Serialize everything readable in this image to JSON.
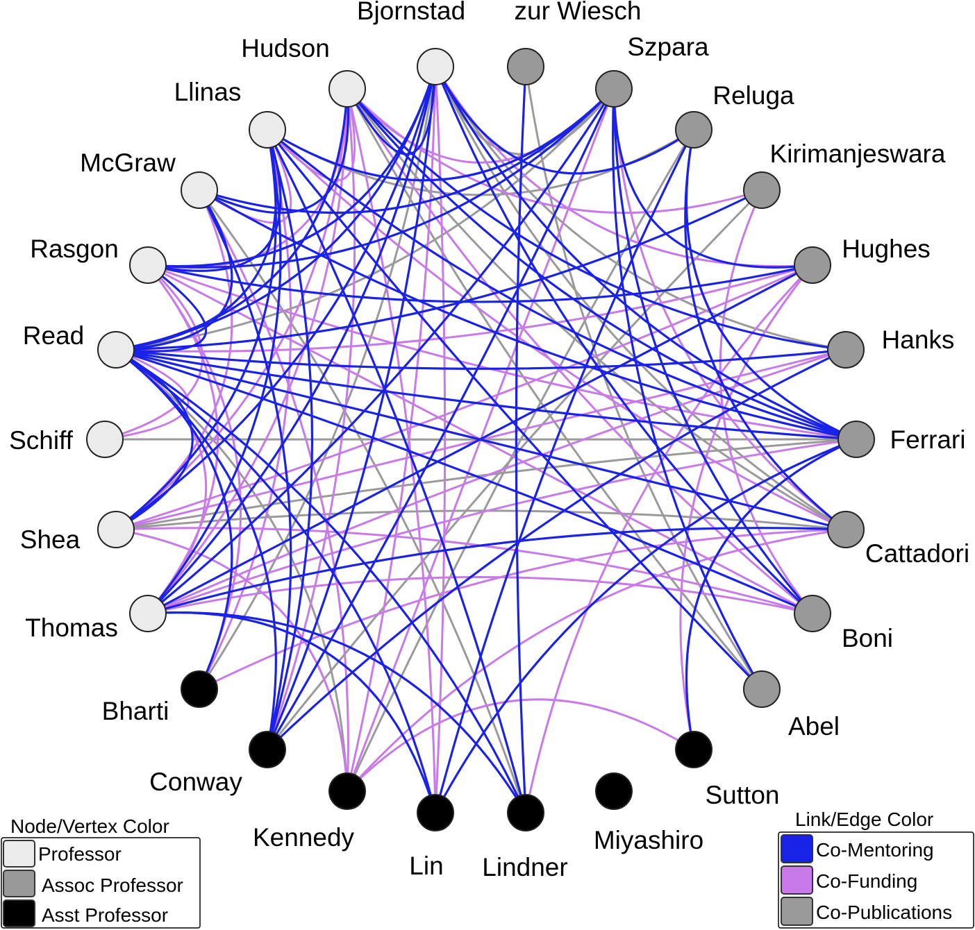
{
  "colors": {
    "professor": "#ebebeb",
    "assoc": "#999999",
    "asst": "#000000",
    "co_mentoring": "#1a22e8",
    "co_funding": "#c77ae8",
    "co_publications": "#9a9a9a"
  },
  "nodes": [
    {
      "id": "bjornstad",
      "label": "Bjornstad",
      "role": "professor"
    },
    {
      "id": "zurwiesch",
      "label": "zur Wiesch",
      "role": "assoc"
    },
    {
      "id": "szpara",
      "label": "Szpara",
      "role": "assoc"
    },
    {
      "id": "reluga",
      "label": "Reluga",
      "role": "assoc"
    },
    {
      "id": "kirimanjeswara",
      "label": "Kirimanjeswara",
      "role": "assoc"
    },
    {
      "id": "hughes",
      "label": "Hughes",
      "role": "assoc"
    },
    {
      "id": "hanks",
      "label": "Hanks",
      "role": "assoc"
    },
    {
      "id": "ferrari",
      "label": "Ferrari",
      "role": "assoc"
    },
    {
      "id": "cattadori",
      "label": "Cattadori",
      "role": "assoc"
    },
    {
      "id": "boni",
      "label": "Boni",
      "role": "assoc"
    },
    {
      "id": "abel",
      "label": "Abel",
      "role": "assoc"
    },
    {
      "id": "sutton",
      "label": "Sutton",
      "role": "asst"
    },
    {
      "id": "miyashiro",
      "label": "Miyashiro",
      "role": "asst"
    },
    {
      "id": "lindner",
      "label": "Lindner",
      "role": "asst"
    },
    {
      "id": "lin",
      "label": "Lin",
      "role": "asst"
    },
    {
      "id": "kennedy",
      "label": "Kennedy",
      "role": "asst"
    },
    {
      "id": "conway",
      "label": "Conway",
      "role": "asst"
    },
    {
      "id": "bharti",
      "label": "Bharti",
      "role": "asst"
    },
    {
      "id": "thomas",
      "label": "Thomas",
      "role": "professor"
    },
    {
      "id": "shea",
      "label": "Shea",
      "role": "professor"
    },
    {
      "id": "schiff",
      "label": "Schiff",
      "role": "professor"
    },
    {
      "id": "read",
      "label": "Read",
      "role": "professor"
    },
    {
      "id": "rasgon",
      "label": "Rasgon",
      "role": "professor"
    },
    {
      "id": "mcgraw",
      "label": "McGraw",
      "role": "professor"
    },
    {
      "id": "llinas",
      "label": "Llinas",
      "role": "professor"
    },
    {
      "id": "hudson",
      "label": "Hudson",
      "role": "professor"
    }
  ],
  "edges": [
    [
      "bjornstad",
      "szpara",
      "pub"
    ],
    [
      "bjornstad",
      "hanks",
      "pub"
    ],
    [
      "bjornstad",
      "cattadori",
      "pub"
    ],
    [
      "bjornstad",
      "ferrari",
      "mentor"
    ],
    [
      "bjornstad",
      "boni",
      "mentor"
    ],
    [
      "bjornstad",
      "read",
      "mentor"
    ],
    [
      "bjornstad",
      "shea",
      "mentor"
    ],
    [
      "bjornstad",
      "rasgon",
      "mentor"
    ],
    [
      "bjornstad",
      "hudson",
      "mentor"
    ],
    [
      "bjornstad",
      "conway",
      "mentor"
    ],
    [
      "bjornstad",
      "thomas",
      "mentor"
    ],
    [
      "bjornstad",
      "lin",
      "funding"
    ],
    [
      "bjornstad",
      "kennedy",
      "funding"
    ],
    [
      "bjornstad",
      "reluga",
      "mentor"
    ],
    [
      "bjornstad",
      "hughes",
      "funding"
    ],
    [
      "bjornstad",
      "bharti",
      "pub"
    ],
    [
      "zurwiesch",
      "lindner",
      "mentor"
    ],
    [
      "zurwiesch",
      "abel",
      "pub"
    ],
    [
      "szpara",
      "hudson",
      "funding"
    ],
    [
      "szpara",
      "llinas",
      "mentor"
    ],
    [
      "szpara",
      "read",
      "pub"
    ],
    [
      "szpara",
      "mcgraw",
      "mentor"
    ],
    [
      "szpara",
      "rasgon",
      "mentor"
    ],
    [
      "szpara",
      "thomas",
      "mentor"
    ],
    [
      "szpara",
      "hughes",
      "mentor"
    ],
    [
      "szpara",
      "cattadori",
      "funding"
    ],
    [
      "szpara",
      "abel",
      "mentor"
    ],
    [
      "szpara",
      "boni",
      "mentor"
    ],
    [
      "szpara",
      "kennedy",
      "funding"
    ],
    [
      "szpara",
      "conway",
      "mentor"
    ],
    [
      "reluga",
      "lin",
      "mentor"
    ],
    [
      "reluga",
      "ferrari",
      "mentor"
    ],
    [
      "reluga",
      "llinas",
      "pub"
    ],
    [
      "reluga",
      "kennedy",
      "pub"
    ],
    [
      "reluga",
      "cattadori",
      "mentor"
    ],
    [
      "kirimanjeswara",
      "read",
      "mentor"
    ],
    [
      "kirimanjeswara",
      "hudson",
      "funding"
    ],
    [
      "kirimanjeswara",
      "conway",
      "pub"
    ],
    [
      "kirimanjeswara",
      "boni",
      "funding"
    ],
    [
      "hughes",
      "read",
      "funding"
    ],
    [
      "hughes",
      "thomas",
      "mentor"
    ],
    [
      "hughes",
      "shea",
      "funding"
    ],
    [
      "hughes",
      "rasgon",
      "mentor"
    ],
    [
      "hughes",
      "lindner",
      "funding"
    ],
    [
      "hanks",
      "hudson",
      "mentor"
    ],
    [
      "hanks",
      "read",
      "mentor"
    ],
    [
      "hanks",
      "conway",
      "mentor"
    ],
    [
      "hanks",
      "shea",
      "funding"
    ],
    [
      "hanks",
      "thomas",
      "funding"
    ],
    [
      "ferrari",
      "read",
      "mentor"
    ],
    [
      "ferrari",
      "shea",
      "pub"
    ],
    [
      "ferrari",
      "llinas",
      "mentor"
    ],
    [
      "ferrari",
      "hudson",
      "mentor"
    ],
    [
      "ferrari",
      "lin",
      "mentor"
    ],
    [
      "ferrari",
      "rasgon",
      "funding"
    ],
    [
      "ferrari",
      "thomas",
      "funding"
    ],
    [
      "ferrari",
      "sutton",
      "funding"
    ],
    [
      "ferrari",
      "schiff",
      "pub"
    ],
    [
      "ferrari",
      "mcgraw",
      "mentor"
    ],
    [
      "cattadori",
      "read",
      "mentor"
    ],
    [
      "cattadori",
      "shea",
      "pub"
    ],
    [
      "cattadori",
      "hudson",
      "pub"
    ],
    [
      "cattadori",
      "thomas",
      "mentor"
    ],
    [
      "cattadori",
      "kennedy",
      "funding"
    ],
    [
      "cattadori",
      "llinas",
      "funding"
    ],
    [
      "cattadori",
      "bharti",
      "funding"
    ],
    [
      "boni",
      "read",
      "mentor"
    ],
    [
      "boni",
      "thomas",
      "funding"
    ],
    [
      "boni",
      "shea",
      "funding"
    ],
    [
      "boni",
      "rasgon",
      "funding"
    ],
    [
      "boni",
      "hudson",
      "funding"
    ],
    [
      "abel",
      "llinas",
      "mentor"
    ],
    [
      "abel",
      "hudson",
      "pub"
    ],
    [
      "sutton",
      "kennedy",
      "funding"
    ],
    [
      "sutton",
      "hughes",
      "funding"
    ],
    [
      "sutton",
      "ferrari",
      "mentor"
    ],
    [
      "lindner",
      "read",
      "mentor"
    ],
    [
      "lindner",
      "thomas",
      "mentor"
    ],
    [
      "lindner",
      "llinas",
      "mentor"
    ],
    [
      "lindner",
      "mcgraw",
      "pub"
    ],
    [
      "lin",
      "thomas",
      "mentor"
    ],
    [
      "lin",
      "read",
      "mentor"
    ],
    [
      "lin",
      "hudson",
      "funding"
    ],
    [
      "kennedy",
      "read",
      "pub"
    ],
    [
      "kennedy",
      "mcgraw",
      "funding"
    ],
    [
      "kennedy",
      "shea",
      "funding"
    ],
    [
      "conway",
      "llinas",
      "mentor"
    ],
    [
      "conway",
      "read",
      "mentor"
    ],
    [
      "conway",
      "mcgraw",
      "mentor"
    ],
    [
      "conway",
      "hudson",
      "funding"
    ],
    [
      "bharti",
      "rasgon",
      "funding"
    ],
    [
      "bharti",
      "read",
      "mentor"
    ],
    [
      "bharti",
      "llinas",
      "funding"
    ],
    [
      "thomas",
      "llinas",
      "mentor"
    ],
    [
      "thomas",
      "rasgon",
      "funding"
    ],
    [
      "thomas",
      "read",
      "funding"
    ],
    [
      "thomas",
      "hudson",
      "funding"
    ],
    [
      "shea",
      "read",
      "mentor"
    ],
    [
      "shea",
      "llinas",
      "mentor"
    ],
    [
      "shea",
      "mcgraw",
      "funding"
    ],
    [
      "shea",
      "hudson",
      "funding"
    ],
    [
      "schiff",
      "read",
      "funding"
    ],
    [
      "schiff",
      "rasgon",
      "funding"
    ],
    [
      "read",
      "llinas",
      "mentor"
    ],
    [
      "read",
      "mcgraw",
      "mentor"
    ],
    [
      "read",
      "hudson",
      "mentor"
    ],
    [
      "read",
      "rasgon",
      "mentor"
    ],
    [
      "rasgon",
      "llinas",
      "mentor"
    ],
    [
      "rasgon",
      "hudson",
      "funding"
    ],
    [
      "mcgraw",
      "llinas",
      "funding"
    ],
    [
      "mcgraw",
      "hudson",
      "mentor"
    ],
    [
      "llinas",
      "hudson",
      "funding"
    ],
    [
      "hudson",
      "read",
      "funding"
    ]
  ],
  "legend_nodes": {
    "title": "Node/Vertex Color",
    "items": [
      "Professor",
      "Assoc Professor",
      "Asst Professor"
    ]
  },
  "legend_edges": {
    "title": "Link/Edge Color",
    "items": [
      "Co-Mentoring",
      "Co-Funding",
      "Co-Publications"
    ]
  }
}
